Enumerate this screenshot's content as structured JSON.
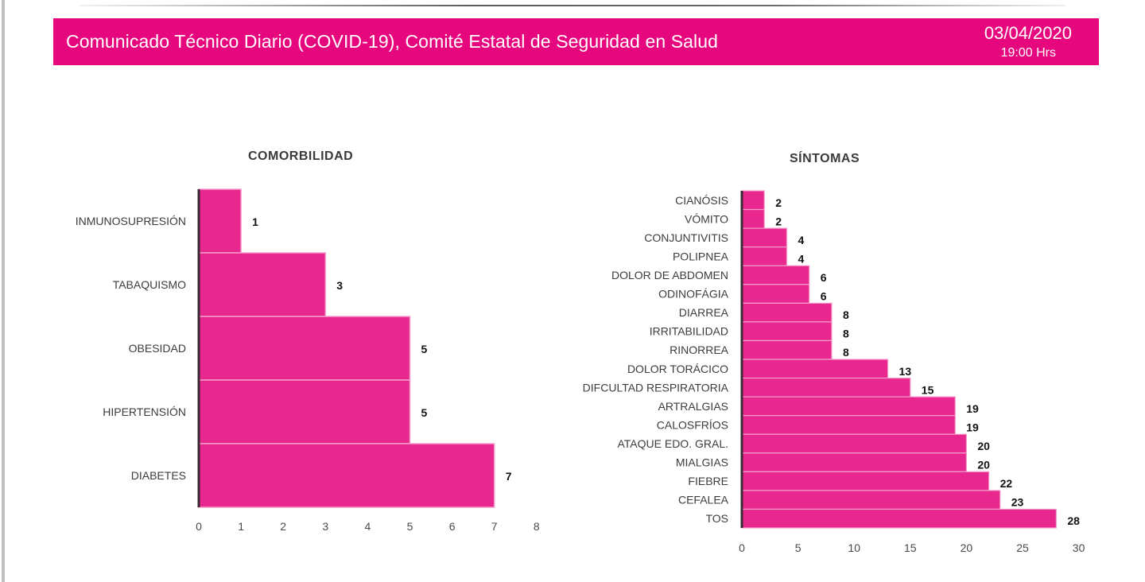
{
  "header": {
    "title": "Comunicado Técnico Diario (COVID-19), Comité Estatal de Seguridad en Salud",
    "date": "03/04/2020",
    "time": "19:00 Hrs"
  },
  "colors": {
    "banner": "#e6077e",
    "bar": "#e8288f",
    "bar_separator": "#f59ccb",
    "axis": "#3a2a33"
  },
  "chart_data": [
    {
      "type": "bar",
      "orientation": "horizontal",
      "title": "COMORBILIDAD",
      "categories": [
        "INMUNOSUPRESIÓN",
        "TABAQUISMO",
        "OBESIDAD",
        "HIPERTENSIÓN",
        "DIABETES"
      ],
      "values": [
        1,
        3,
        5,
        5,
        7
      ],
      "xlim": [
        0,
        8
      ],
      "xticks": [
        0,
        1,
        2,
        3,
        4,
        5,
        6,
        7,
        8
      ],
      "xlabel": "",
      "ylabel": "",
      "grid": false,
      "data_labels": true
    },
    {
      "type": "bar",
      "orientation": "horizontal",
      "title": "SÍNTOMAS",
      "categories": [
        "CIANÓSIS",
        "VÓMITO",
        "CONJUNTIVITIS",
        "POLIPNEA",
        "DOLOR DE ABDOMEN",
        "ODINOFÁGIA",
        "DIARREA",
        "IRRITABILIDAD",
        "RINORREA",
        "DOLOR TORÁCICO",
        "DIFCULTAD RESPIRATORIA",
        "ARTRALGIAS",
        "CALOSFRÍOS",
        "ATAQUE EDO. GRAL.",
        "MIALGIAS",
        "FIEBRE",
        "CEFALEA",
        "TOS"
      ],
      "values": [
        2,
        2,
        4,
        4,
        6,
        6,
        8,
        8,
        8,
        13,
        15,
        19,
        19,
        20,
        20,
        22,
        23,
        28
      ],
      "xlim": [
        0,
        30
      ],
      "xticks": [
        0,
        5,
        10,
        15,
        20,
        25,
        30
      ],
      "xlabel": "",
      "ylabel": "",
      "grid": false,
      "data_labels": true
    }
  ]
}
